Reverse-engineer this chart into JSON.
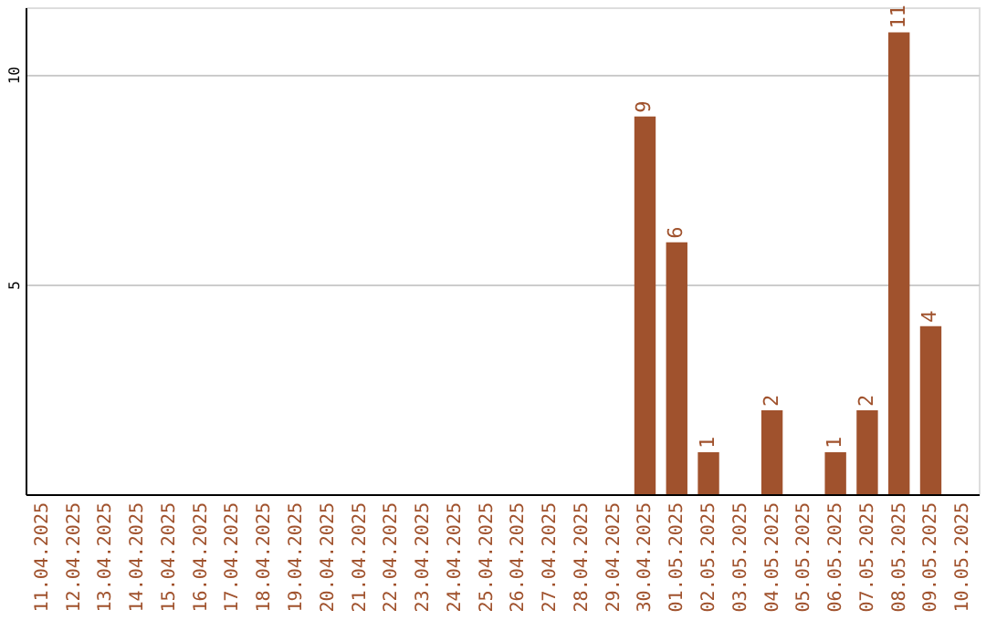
{
  "chart_data": {
    "type": "bar",
    "categories": [
      "11.04.2025",
      "12.04.2025",
      "13.04.2025",
      "14.04.2025",
      "15.04.2025",
      "16.04.2025",
      "17.04.2025",
      "18.04.2025",
      "19.04.2025",
      "20.04.2025",
      "21.04.2025",
      "22.04.2025",
      "23.04.2025",
      "24.04.2025",
      "25.04.2025",
      "26.04.2025",
      "27.04.2025",
      "28.04.2025",
      "29.04.2025",
      "30.04.2025",
      "01.05.2025",
      "02.05.2025",
      "03.05.2025",
      "04.05.2025",
      "05.05.2025",
      "06.05.2025",
      "07.05.2025",
      "08.05.2025",
      "09.05.2025",
      "10.05.2025"
    ],
    "series": [
      {
        "color": "#a0522d",
        "values": [
          0,
          0,
          0,
          0,
          0,
          0,
          0,
          0,
          0,
          0,
          0,
          0,
          0,
          0,
          0,
          0,
          0,
          0,
          0,
          9,
          6,
          1,
          0,
          2,
          0,
          1,
          2,
          11,
          4,
          0
        ],
        "value_labels": [
          null,
          null,
          null,
          null,
          null,
          null,
          null,
          null,
          null,
          null,
          null,
          null,
          null,
          null,
          null,
          null,
          null,
          null,
          null,
          "9",
          "6",
          "1",
          null,
          "2",
          null,
          "1",
          "2",
          "11",
          "4",
          null
        ]
      }
    ],
    "ylim": [
      0,
      11.6
    ],
    "yticks": [
      5,
      10
    ],
    "grid": "y"
  }
}
